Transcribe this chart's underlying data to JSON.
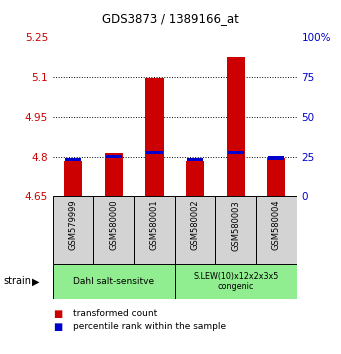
{
  "title": "GDS3873 / 1389166_at",
  "samples": [
    "GSM579999",
    "GSM580000",
    "GSM580001",
    "GSM580002",
    "GSM580003",
    "GSM580004"
  ],
  "red_values": [
    4.785,
    4.815,
    5.095,
    4.785,
    5.175,
    4.795
  ],
  "blue_values": [
    4.79,
    4.8,
    4.815,
    4.79,
    4.815,
    4.795
  ],
  "y_min": 4.65,
  "y_max": 5.25,
  "y_ticks_left": [
    4.65,
    4.8,
    4.95,
    5.1,
    5.25
  ],
  "y_ticks_left_labels": [
    "4.65",
    "4.8",
    "4.95",
    "5.1",
    "5.25"
  ],
  "y_ticks_right": [
    4.65,
    4.8,
    4.95,
    5.1,
    5.25
  ],
  "y_ticks_right_labels": [
    "0",
    "25",
    "50",
    "75",
    "100%"
  ],
  "dotted_lines": [
    4.8,
    4.95,
    5.1
  ],
  "group1_indices": [
    0,
    1,
    2
  ],
  "group2_indices": [
    3,
    4,
    5
  ],
  "group1_label": "Dahl salt-sensitve",
  "group2_label": "S.LEW(10)x12x2x3x5\ncongenic",
  "group_bg_color": "#90EE90",
  "sample_bg_color": "#d3d3d3",
  "bar_color_red": "#cc0000",
  "bar_color_blue": "#0000cc",
  "strain_label": "strain",
  "legend_red": "transformed count",
  "legend_blue": "percentile rank within the sample",
  "left_tick_color": "#cc0000",
  "right_tick_color": "#0000cc",
  "bar_width": 0.45,
  "blue_bar_width": 0.4,
  "blue_bar_height": 0.012
}
